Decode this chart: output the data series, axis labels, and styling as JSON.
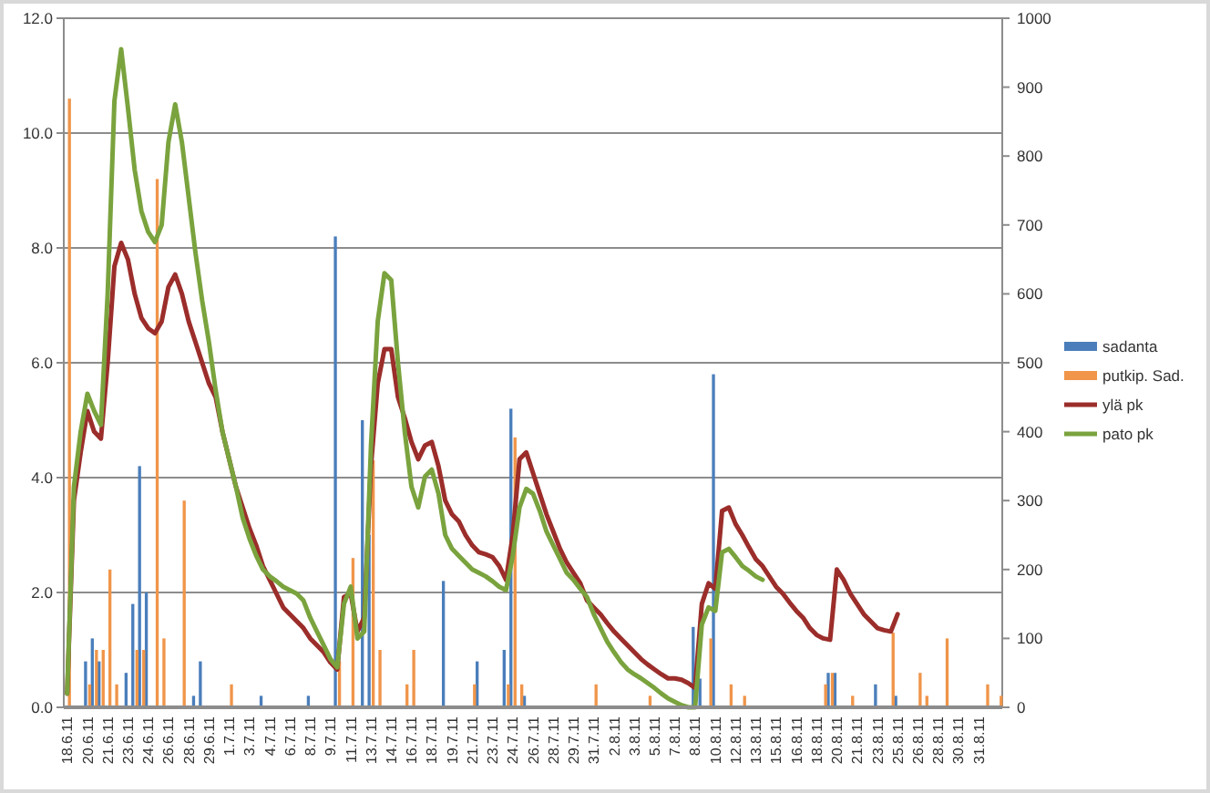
{
  "chart_data": {
    "type": "bar",
    "categories": [
      "18.6.11",
      null,
      null,
      "20.6.11",
      null,
      null,
      "21.6.11",
      null,
      null,
      "23.6.11",
      null,
      null,
      "24.6.11",
      null,
      null,
      "26.6.11",
      null,
      null,
      "28.6.11",
      null,
      null,
      "29.6.11",
      null,
      null,
      "1.7.11",
      null,
      null,
      "3.7.11",
      null,
      null,
      "4.7.11",
      null,
      null,
      "6.7.11",
      null,
      null,
      "8.7.11",
      null,
      null,
      "9.7.11",
      null,
      null,
      "11.7.11",
      null,
      null,
      "13.7.11",
      null,
      null,
      "14.7.11",
      null,
      null,
      "16.7.11",
      null,
      null,
      "18.7.11",
      null,
      null,
      "19.7.11",
      null,
      null,
      "21.7.11",
      null,
      null,
      "23.7.11",
      null,
      null,
      "24.7.11",
      null,
      null,
      "26.7.11",
      null,
      null,
      "28.7.11",
      null,
      null,
      "29.7.11",
      null,
      null,
      "31.7.11",
      null,
      null,
      "2.8.11",
      null,
      null,
      "3.8.11",
      null,
      null,
      "5.8.11",
      null,
      null,
      "7.8.11",
      null,
      null,
      "8.8.11",
      null,
      null,
      "10.8.11",
      null,
      null,
      "12.8.11",
      null,
      null,
      "13.8.11",
      null,
      null,
      "15.8.11",
      null,
      null,
      "16.8.11",
      null,
      null,
      "18.8.11",
      null,
      null,
      "20.8.11",
      null,
      null,
      "21.8.11",
      null,
      null,
      "23.8.11",
      null,
      null,
      "25.8.11",
      null,
      null,
      "26.8.11",
      null,
      null,
      "28.8.11",
      null,
      null,
      "30.8.11",
      null,
      null,
      "31.8.11",
      null,
      null,
      null
    ],
    "series": [
      {
        "name": "sadanta",
        "color": "#4a7ebb",
        "values": [
          null,
          null,
          null,
          0.8,
          1.2,
          0.8,
          null,
          null,
          null,
          0.6,
          1.8,
          4.2,
          2.0,
          null,
          null,
          null,
          null,
          null,
          null,
          0.2,
          0.8,
          null,
          null,
          null,
          null,
          null,
          null,
          null,
          null,
          0.2,
          null,
          null,
          null,
          null,
          null,
          null,
          0.2,
          null,
          null,
          null,
          8.2,
          null,
          null,
          null,
          5.0,
          3.0,
          null,
          null,
          null,
          null,
          null,
          null,
          null,
          null,
          null,
          null,
          2.2,
          null,
          null,
          null,
          null,
          0.8,
          null,
          null,
          null,
          1.0,
          5.2,
          null,
          0.2,
          null,
          null,
          null,
          null,
          null,
          null,
          null,
          null,
          null,
          null,
          null,
          null,
          null,
          null,
          null,
          null,
          null,
          null,
          null,
          null,
          null,
          null,
          null,
          null,
          1.4,
          0.5,
          null,
          5.8,
          null,
          null,
          null,
          null,
          null,
          null,
          null,
          null,
          null,
          null,
          null,
          null,
          null,
          null,
          null,
          null,
          0.6,
          0.6,
          null,
          null,
          null,
          null,
          null,
          0.4,
          null,
          null,
          0.2,
          null,
          null,
          null,
          null,
          null,
          null,
          null,
          null,
          null,
          null,
          null,
          null,
          null,
          null,
          null
        ]
      },
      {
        "name": "putkip. Sad.",
        "color": "#f0954a",
        "values": [
          10.6,
          null,
          null,
          0.4,
          1.0,
          1.0,
          2.4,
          0.4,
          null,
          null,
          1.0,
          1.0,
          null,
          9.2,
          1.2,
          null,
          null,
          3.6,
          null,
          null,
          null,
          null,
          null,
          null,
          0.4,
          null,
          null,
          null,
          null,
          null,
          null,
          null,
          null,
          null,
          null,
          null,
          null,
          null,
          null,
          null,
          0.8,
          null,
          2.6,
          null,
          null,
          4.3,
          1.0,
          null,
          null,
          null,
          0.4,
          1.0,
          null,
          null,
          null,
          null,
          null,
          null,
          null,
          null,
          0.4,
          null,
          null,
          null,
          null,
          0.4,
          4.7,
          0.4,
          null,
          null,
          null,
          null,
          null,
          null,
          null,
          null,
          null,
          null,
          0.4,
          null,
          null,
          null,
          null,
          null,
          null,
          null,
          0.2,
          null,
          null,
          null,
          null,
          null,
          null,
          null,
          null,
          1.2,
          null,
          null,
          0.4,
          null,
          0.2,
          null,
          null,
          null,
          null,
          null,
          null,
          null,
          null,
          null,
          null,
          null,
          0.4,
          0.6,
          null,
          null,
          0.2,
          null,
          null,
          null,
          null,
          null,
          1.3,
          null,
          null,
          null,
          0.6,
          0.2,
          null,
          null,
          1.2,
          null,
          null,
          null,
          null,
          null,
          0.4,
          null,
          0.2
        ]
      },
      {
        "name": "ylä pk",
        "type": "line",
        "axis": "y2",
        "color": "#9b2d2a",
        "values": [
          20,
          300,
          370,
          430,
          400,
          390,
          500,
          640,
          674,
          650,
          600,
          565,
          550,
          543,
          560,
          610,
          628,
          600,
          560,
          530,
          500,
          470,
          450,
          400,
          360,
          320,
          290,
          260,
          235,
          205,
          185,
          165,
          145,
          135,
          125,
          115,
          100,
          90,
          80,
          65,
          55,
          160,
          165,
          110,
          130,
          350,
          470,
          520,
          520,
          450,
          420,
          385,
          360,
          380,
          385,
          350,
          300,
          280,
          270,
          250,
          235,
          225,
          222,
          218,
          205,
          185,
          250,
          360,
          370,
          340,
          310,
          280,
          255,
          230,
          210,
          195,
          180,
          155,
          145,
          135,
          122,
          110,
          100,
          90,
          80,
          70,
          62,
          55,
          48,
          42,
          42,
          40,
          35,
          28,
          150,
          180,
          172,
          285,
          290,
          266,
          250,
          232,
          215,
          205,
          190,
          175,
          165,
          152,
          140,
          130,
          115,
          105,
          100,
          98,
          200,
          185,
          165,
          150,
          135,
          125,
          115,
          112,
          110,
          135,
          null,
          null,
          null,
          null,
          null,
          null,
          null,
          null,
          null,
          null,
          null,
          null,
          null,
          null,
          null
        ]
      },
      {
        "name": "pato pk",
        "type": "line",
        "axis": "y2",
        "color": "#7aa33e",
        "values": [
          20,
          320,
          400,
          455,
          430,
          410,
          600,
          880,
          955,
          870,
          780,
          720,
          690,
          675,
          700,
          820,
          875,
          820,
          740,
          660,
          590,
          530,
          460,
          400,
          360,
          320,
          275,
          245,
          220,
          200,
          190,
          183,
          175,
          170,
          165,
          155,
          130,
          110,
          90,
          70,
          58,
          150,
          175,
          100,
          110,
          380,
          560,
          630,
          620,
          500,
          400,
          320,
          290,
          335,
          345,
          310,
          250,
          230,
          220,
          210,
          200,
          195,
          190,
          183,
          175,
          170,
          220,
          290,
          317,
          310,
          285,
          255,
          235,
          215,
          195,
          185,
          172,
          160,
          135,
          115,
          95,
          80,
          66,
          55,
          48,
          42,
          35,
          28,
          20,
          13,
          8,
          3,
          0,
          0,
          120,
          145,
          140,
          225,
          230,
          218,
          205,
          198,
          190,
          185,
          null,
          null,
          null,
          null,
          null,
          null,
          null,
          null,
          null,
          null,
          null,
          null,
          null,
          null,
          null,
          null,
          null,
          null,
          null,
          null,
          null,
          null,
          null,
          null,
          null,
          null,
          null,
          null,
          null,
          null,
          null,
          null,
          null,
          null,
          null
        ]
      }
    ],
    "ylim": [
      0,
      12
    ],
    "yticks": [
      {
        "value": 0,
        "label": "0.0"
      },
      {
        "value": 2,
        "label": "2.0"
      },
      {
        "value": 4,
        "label": "4.0"
      },
      {
        "value": 6,
        "label": "6.0"
      },
      {
        "value": 8,
        "label": "8.0"
      },
      {
        "value": 10,
        "label": "10.0"
      },
      {
        "value": 12,
        "label": "12.0"
      }
    ],
    "y2lim": [
      0,
      1000
    ],
    "y2ticks": [
      0,
      100,
      200,
      300,
      400,
      500,
      600,
      700,
      800,
      900,
      1000
    ],
    "grid": "y",
    "legend": "right"
  }
}
